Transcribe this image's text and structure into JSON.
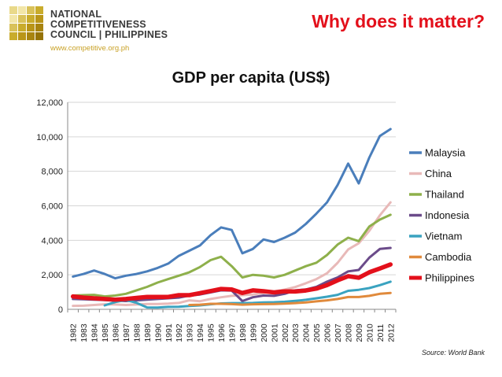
{
  "logo": {
    "line1": "NATIONAL",
    "line2": "COMPETITIVENESS",
    "line3": "COUNCIL | PHILIPPINES",
    "url": "www.competitive.org.ph"
  },
  "headline": "Why does it matter?",
  "source": "Source: World Bank",
  "chart_data": {
    "type": "line",
    "title": "GDP per capita (US$)",
    "xlabel": "",
    "ylabel": "",
    "ylim": [
      0,
      12000
    ],
    "yticks": [
      0,
      2000,
      4000,
      6000,
      8000,
      10000,
      12000
    ],
    "ytick_labels": [
      "0",
      "2,000",
      "4,000",
      "6,000",
      "8,000",
      "10,000",
      "12,000"
    ],
    "grid": true,
    "legend": "right",
    "x": [
      "1982",
      "1983",
      "1984",
      "1985",
      "1986",
      "1987",
      "1988",
      "1989",
      "1990",
      "1991",
      "1992",
      "1993",
      "1994",
      "1995",
      "1996",
      "1997",
      "1998",
      "1999",
      "2000",
      "2001",
      "2002",
      "2003",
      "2004",
      "2005",
      "2006",
      "2007",
      "2008",
      "2009",
      "2010",
      "2011",
      "2012"
    ],
    "series": [
      {
        "name": "Malaysia",
        "color": "#4a7ebb",
        "width": 3,
        "values": [
          1900,
          2050,
          2250,
          2050,
          1800,
          1950,
          2050,
          2200,
          2400,
          2650,
          3100,
          3400,
          3700,
          4300,
          4750,
          4600,
          3250,
          3500,
          4050,
          3900,
          4150,
          4450,
          4950,
          5550,
          6200,
          7200,
          8450,
          7300,
          8800,
          10050,
          10450
        ]
      },
      {
        "name": "China",
        "color": "#e8b9b8",
        "width": 3,
        "values": [
          200,
          210,
          250,
          290,
          280,
          250,
          280,
          310,
          310,
          330,
          370,
          520,
          470,
          600,
          700,
          780,
          820,
          860,
          950,
          1040,
          1140,
          1290,
          1510,
          1750,
          2090,
          2690,
          3470,
          3830,
          4560,
          5450,
          6200
        ]
      },
      {
        "name": "Thailand",
        "color": "#8eb04b",
        "width": 3,
        "values": [
          800,
          820,
          840,
          750,
          800,
          900,
          1100,
          1300,
          1550,
          1750,
          1950,
          2150,
          2450,
          2850,
          3050,
          2500,
          1850,
          2000,
          1950,
          1850,
          2000,
          2250,
          2500,
          2700,
          3150,
          3750,
          4150,
          3950,
          4800,
          5200,
          5480
        ]
      },
      {
        "name": "Indonesia",
        "color": "#6b4b8a",
        "width": 3,
        "values": [
          600,
          580,
          560,
          540,
          500,
          480,
          520,
          560,
          600,
          640,
          680,
          800,
          860,
          980,
          1100,
          1080,
          480,
          700,
          800,
          780,
          900,
          1100,
          1150,
          1300,
          1600,
          1850,
          2200,
          2280,
          3000,
          3500,
          3560
        ]
      },
      {
        "name": "Vietnam",
        "color": "#3aa3c0",
        "width": 3,
        "values": [
          null,
          null,
          null,
          230,
          420,
          540,
          380,
          110,
          100,
          140,
          150,
          190,
          230,
          290,
          340,
          360,
          360,
          370,
          400,
          410,
          440,
          490,
          550,
          640,
          730,
          840,
          1070,
          1130,
          1230,
          1400,
          1600
        ]
      },
      {
        "name": "Cambodia",
        "color": "#e08a3c",
        "width": 3,
        "values": [
          null,
          null,
          null,
          null,
          null,
          null,
          null,
          null,
          null,
          null,
          null,
          250,
          270,
          320,
          320,
          300,
          270,
          290,
          300,
          310,
          330,
          360,
          400,
          460,
          520,
          600,
          710,
          710,
          780,
          900,
          950
        ]
      },
      {
        "name": "Philippines",
        "color": "#e3101b",
        "width": 5.5,
        "values": [
          750,
          680,
          640,
          600,
          560,
          600,
          660,
          720,
          720,
          720,
          820,
          820,
          940,
          1060,
          1180,
          1150,
          950,
          1100,
          1050,
          980,
          1040,
          1030,
          1090,
          1200,
          1400,
          1680,
          1920,
          1830,
          2150,
          2370,
          2600
        ]
      }
    ]
  }
}
